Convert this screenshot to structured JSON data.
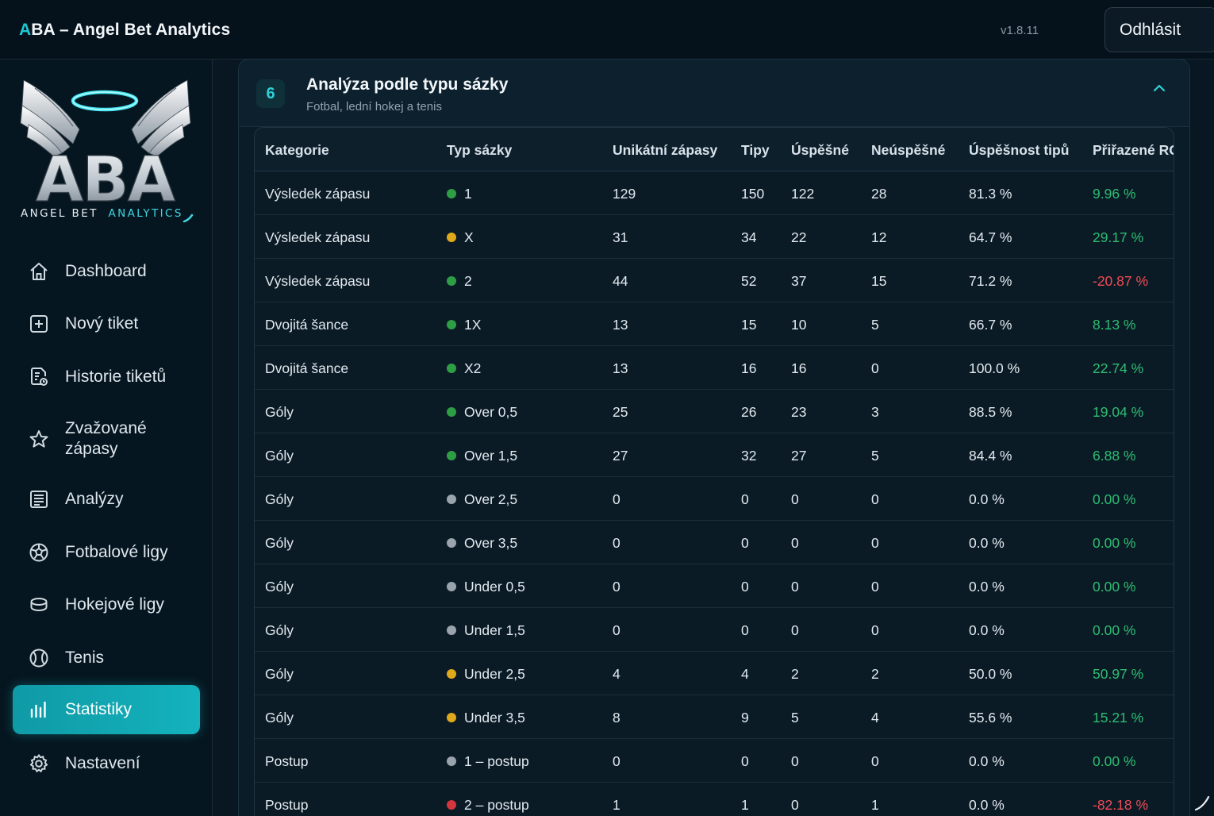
{
  "header": {
    "title_accent": "A",
    "title_rest": "BA – Angel Bet Analytics",
    "version": "v1.8.11",
    "logout_label": "Odhlásit"
  },
  "logo": {
    "text": "ABA",
    "tagline_a": "ANGEL BET",
    "tagline_b": "ANALYTICS"
  },
  "sidebar": {
    "items": [
      {
        "label": "Dashboard",
        "icon": "home-icon"
      },
      {
        "label": "Nový tiket",
        "icon": "plus-square-icon"
      },
      {
        "label": "Historie tiketů",
        "icon": "ticket-history-icon"
      },
      {
        "label": "Zvažované zápasy",
        "icon": "star-icon"
      },
      {
        "label": "Analýzy",
        "icon": "list-icon"
      },
      {
        "label": "Fotbalové ligy",
        "icon": "soccer-ball-icon"
      },
      {
        "label": "Hokejové ligy",
        "icon": "puck-icon"
      },
      {
        "label": "Tenis",
        "icon": "tennis-ball-icon"
      },
      {
        "label": "Statistiky",
        "icon": "bar-chart-icon",
        "active": true
      },
      {
        "label": "Nastavení",
        "icon": "gear-icon"
      }
    ]
  },
  "section": {
    "number": "6",
    "title": "Analýza podle typu sázky",
    "subtitle": "Fotbal, lední hokej a tenis"
  },
  "colors": {
    "accent": "#1ec8d4",
    "dot_green": "#2e9e44",
    "dot_yellow": "#e0a91b",
    "dot_grey": "#9aa4ad",
    "dot_red": "#d4363d",
    "positive": "#2ebd72",
    "negative": "#ef4c55"
  },
  "table": {
    "columns": [
      "Kategorie",
      "Typ sázky",
      "Unikátní zápasy",
      "Tipy",
      "Úspěšné",
      "Neúspěšné",
      "Úspěšnost tipů",
      "Přiřazené ROI"
    ],
    "rows": [
      {
        "kategorie": "Výsledek zápasu",
        "dot": "green",
        "typ": "1",
        "unikatni": "129",
        "tipy": "150",
        "uspesne": "122",
        "neuspesne": "28",
        "uspesnost": "81.3 %",
        "roi": "9.96 %",
        "roi_sign": "pos"
      },
      {
        "kategorie": "Výsledek zápasu",
        "dot": "yellow",
        "typ": "X",
        "unikatni": "31",
        "tipy": "34",
        "uspesne": "22",
        "neuspesne": "12",
        "uspesnost": "64.7 %",
        "roi": "29.17 %",
        "roi_sign": "pos"
      },
      {
        "kategorie": "Výsledek zápasu",
        "dot": "green",
        "typ": "2",
        "unikatni": "44",
        "tipy": "52",
        "uspesne": "37",
        "neuspesne": "15",
        "uspesnost": "71.2 %",
        "roi": "-20.87 %",
        "roi_sign": "neg"
      },
      {
        "kategorie": "Dvojitá šance",
        "dot": "green",
        "typ": "1X",
        "unikatni": "13",
        "tipy": "15",
        "uspesne": "10",
        "neuspesne": "5",
        "uspesnost": "66.7 %",
        "roi": "8.13 %",
        "roi_sign": "pos"
      },
      {
        "kategorie": "Dvojitá šance",
        "dot": "green",
        "typ": "X2",
        "unikatni": "13",
        "tipy": "16",
        "uspesne": "16",
        "neuspesne": "0",
        "uspesnost": "100.0 %",
        "roi": "22.74 %",
        "roi_sign": "pos"
      },
      {
        "kategorie": "Góly",
        "dot": "green",
        "typ": "Over 0,5",
        "unikatni": "25",
        "tipy": "26",
        "uspesne": "23",
        "neuspesne": "3",
        "uspesnost": "88.5 %",
        "roi": "19.04 %",
        "roi_sign": "pos"
      },
      {
        "kategorie": "Góly",
        "dot": "green",
        "typ": "Over 1,5",
        "unikatni": "27",
        "tipy": "32",
        "uspesne": "27",
        "neuspesne": "5",
        "uspesnost": "84.4 %",
        "roi": "6.88 %",
        "roi_sign": "pos"
      },
      {
        "kategorie": "Góly",
        "dot": "grey",
        "typ": "Over 2,5",
        "unikatni": "0",
        "tipy": "0",
        "uspesne": "0",
        "neuspesne": "0",
        "uspesnost": "0.0 %",
        "roi": "0.00 %",
        "roi_sign": "pos"
      },
      {
        "kategorie": "Góly",
        "dot": "grey",
        "typ": "Over 3,5",
        "unikatni": "0",
        "tipy": "0",
        "uspesne": "0",
        "neuspesne": "0",
        "uspesnost": "0.0 %",
        "roi": "0.00 %",
        "roi_sign": "pos"
      },
      {
        "kategorie": "Góly",
        "dot": "grey",
        "typ": "Under 0,5",
        "unikatni": "0",
        "tipy": "0",
        "uspesne": "0",
        "neuspesne": "0",
        "uspesnost": "0.0 %",
        "roi": "0.00 %",
        "roi_sign": "pos"
      },
      {
        "kategorie": "Góly",
        "dot": "grey",
        "typ": "Under 1,5",
        "unikatni": "0",
        "tipy": "0",
        "uspesne": "0",
        "neuspesne": "0",
        "uspesnost": "0.0 %",
        "roi": "0.00 %",
        "roi_sign": "pos"
      },
      {
        "kategorie": "Góly",
        "dot": "yellow",
        "typ": "Under 2,5",
        "unikatni": "4",
        "tipy": "4",
        "uspesne": "2",
        "neuspesne": "2",
        "uspesnost": "50.0 %",
        "roi": "50.97 %",
        "roi_sign": "pos"
      },
      {
        "kategorie": "Góly",
        "dot": "yellow",
        "typ": "Under 3,5",
        "unikatni": "8",
        "tipy": "9",
        "uspesne": "5",
        "neuspesne": "4",
        "uspesnost": "55.6 %",
        "roi": "15.21 %",
        "roi_sign": "pos"
      },
      {
        "kategorie": "Postup",
        "dot": "grey",
        "typ": "1 – postup",
        "unikatni": "0",
        "tipy": "0",
        "uspesne": "0",
        "neuspesne": "0",
        "uspesnost": "0.0 %",
        "roi": "0.00 %",
        "roi_sign": "pos"
      },
      {
        "kategorie": "Postup",
        "dot": "red",
        "typ": "2 – postup",
        "unikatni": "1",
        "tipy": "1",
        "uspesne": "0",
        "neuspesne": "1",
        "uspesnost": "0.0 %",
        "roi": "-82.18 %",
        "roi_sign": "neg"
      }
    ]
  }
}
